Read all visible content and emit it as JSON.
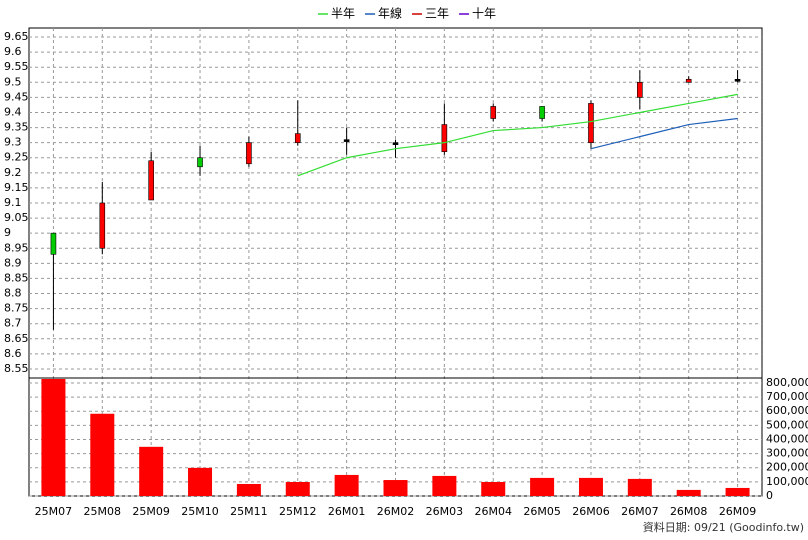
{
  "chart_data": [
    {
      "type": "candlestick",
      "categories": [
        "25M07",
        "25M08",
        "25M09",
        "25M10",
        "25M11",
        "25M12",
        "26M01",
        "26M02",
        "26M03",
        "26M04",
        "26M05",
        "26M06",
        "26M07",
        "26M08",
        "26M09"
      ],
      "open": [
        9.0,
        8.95,
        9.11,
        9.25,
        9.23,
        9.3,
        9.31,
        9.3,
        9.27,
        9.38,
        9.42,
        9.3,
        9.45,
        9.5,
        9.51
      ],
      "high": [
        9.0,
        9.17,
        9.27,
        9.29,
        9.32,
        9.44,
        9.35,
        9.31,
        9.43,
        9.43,
        9.42,
        9.44,
        9.54,
        9.52,
        9.54
      ],
      "low": [
        8.68,
        8.93,
        9.11,
        9.19,
        9.22,
        9.29,
        9.26,
        9.25,
        9.26,
        9.37,
        9.37,
        9.28,
        9.41,
        9.5,
        9.5
      ],
      "close": [
        8.93,
        9.1,
        9.24,
        9.22,
        9.3,
        9.33,
        9.31,
        9.3,
        9.36,
        9.42,
        9.38,
        9.43,
        9.5,
        9.51,
        9.51
      ],
      "up_color": "#ff0000",
      "down_color": "#00cc00",
      "series": [
        {
          "name": "半年",
          "color": "#33dd33",
          "values": [
            null,
            null,
            null,
            null,
            null,
            9.19,
            9.25,
            9.28,
            9.3,
            9.34,
            9.35,
            9.37,
            9.4,
            9.43,
            9.46
          ]
        },
        {
          "name": "年線",
          "color": "#1f5fb8",
          "values": [
            null,
            null,
            null,
            null,
            null,
            null,
            null,
            null,
            null,
            null,
            null,
            9.28,
            9.32,
            9.36,
            9.38
          ]
        },
        {
          "name": "三年",
          "color": "#cc0000",
          "values": [
            null,
            null,
            null,
            null,
            null,
            null,
            null,
            null,
            null,
            null,
            null,
            null,
            null,
            null,
            null
          ]
        },
        {
          "name": "十年",
          "color": "#6600cc",
          "values": [
            null,
            null,
            null,
            null,
            null,
            null,
            null,
            null,
            null,
            null,
            null,
            null,
            null,
            null,
            null
          ]
        }
      ],
      "ylim": [
        8.52,
        9.68
      ],
      "yticks": [
        8.55,
        8.6,
        8.65,
        8.7,
        8.75,
        8.8,
        8.85,
        8.9,
        8.95,
        9,
        9.05,
        9.1,
        9.15,
        9.2,
        9.25,
        9.3,
        9.35,
        9.4,
        9.45,
        9.5,
        9.55,
        9.6,
        9.65
      ],
      "grid": true,
      "legend": "top"
    },
    {
      "type": "bar",
      "categories": [
        "25M07",
        "25M08",
        "25M09",
        "25M10",
        "25M11",
        "25M12",
        "26M01",
        "26M02",
        "26M03",
        "26M04",
        "26M05",
        "26M06",
        "26M07",
        "26M08",
        "26M09"
      ],
      "values": [
        828000,
        582000,
        348000,
        199000,
        85000,
        99000,
        149000,
        113000,
        142000,
        99000,
        128000,
        128000,
        121000,
        43000,
        57000
      ],
      "color": "#ff0000",
      "ylim": [
        0,
        835000
      ],
      "yticks": [
        0,
        {
          "value": 100000,
          "label": "100,000"
        },
        {
          "value": 200000,
          "label": "200,000"
        },
        {
          "value": 300000,
          "label": "300,000"
        },
        {
          "value": 400000,
          "label": "400,000"
        },
        {
          "value": 500000,
          "label": "500,000"
        },
        {
          "value": 600000,
          "label": "600,000"
        },
        {
          "value": 700000,
          "label": "700,000"
        },
        {
          "value": 800000,
          "label": "800,000"
        }
      ],
      "grid": true
    }
  ],
  "footer": "資料日期: 09/21  (Goodinfo.tw)"
}
